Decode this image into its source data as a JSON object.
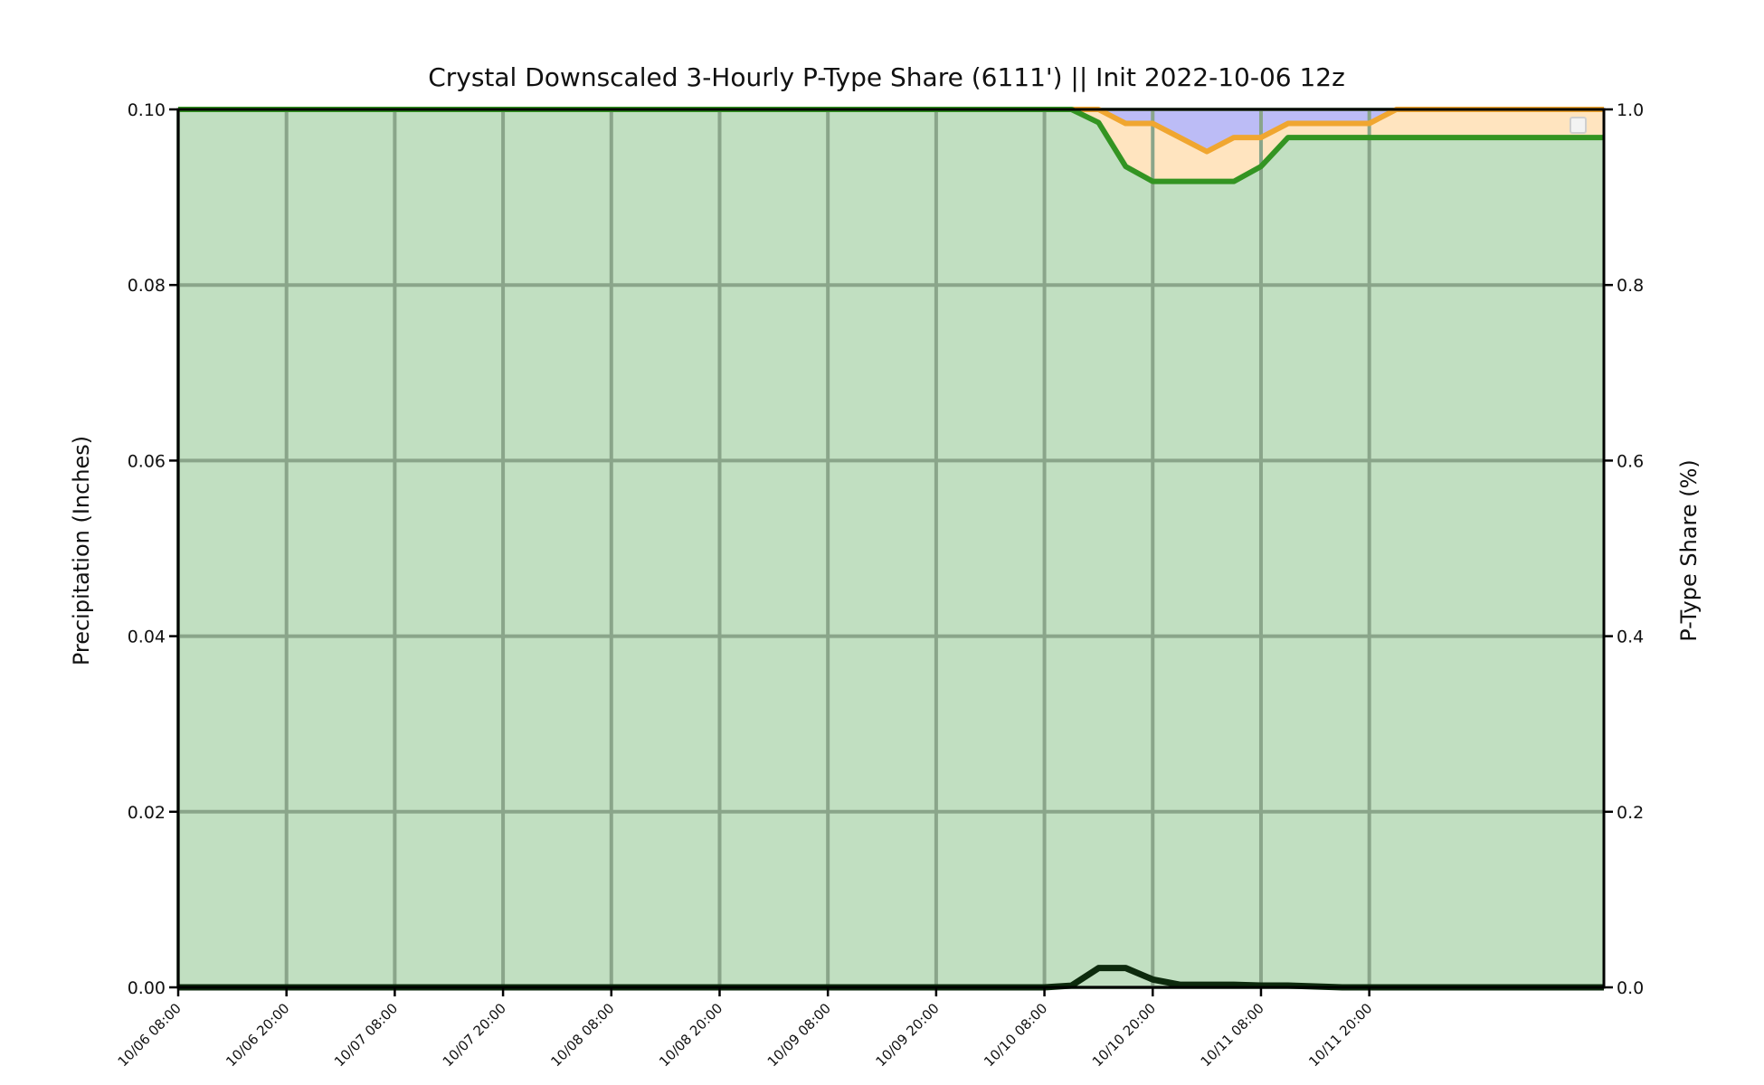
{
  "chart_data": {
    "type": "area",
    "title": "Crystal Downscaled 3-Hourly P-Type Share (6111') || Init 2022-10-06 12z",
    "ylabel_left": "Precipitation (Inches)",
    "ylabel_right": "P-Type Share (%)",
    "ylim_left": [
      0,
      0.1
    ],
    "ylim_right": [
      0,
      1.0
    ],
    "y_ticks_left": [
      "0.00",
      "0.02",
      "0.04",
      "0.06",
      "0.08",
      "0.10"
    ],
    "y_ticks_right": [
      "0.0",
      "0.2",
      "0.4",
      "0.6",
      "0.8",
      "1.0"
    ],
    "x_ticks": [
      "10/06 08:00",
      "10/06 20:00",
      "10/07 08:00",
      "10/07 20:00",
      "10/08 08:00",
      "10/08 20:00",
      "10/09 08:00",
      "10/09 20:00",
      "10/10 08:00",
      "10/10 20:00",
      "10/11 08:00",
      "10/11 20:00"
    ],
    "x_hours": [
      0,
      3,
      6,
      9,
      12,
      15,
      18,
      21,
      24,
      27,
      30,
      33,
      36,
      39,
      42,
      45,
      48,
      51,
      54,
      57,
      60,
      63,
      66,
      69,
      72,
      75,
      78,
      81,
      84,
      87,
      90,
      93,
      96,
      99,
      102,
      105,
      108,
      111,
      114,
      117,
      120,
      123,
      126,
      129,
      132,
      135,
      138,
      141
    ],
    "grid": true,
    "colors": {
      "rain_fill": "#c1dfc1",
      "rain_line": "#339422",
      "mix_fill": "#ffe4bf",
      "mix_line": "#f0a630",
      "snow_fill": "#bcbcf6",
      "precip_line": "#0d2a0d",
      "grid": "#8aa58a"
    },
    "series": [
      {
        "values": [
          1,
          1,
          1,
          1,
          1,
          1,
          1,
          1,
          1,
          1,
          1,
          1,
          1,
          1,
          1,
          1,
          1,
          1,
          1,
          1,
          1,
          1,
          1,
          1,
          1,
          1,
          1,
          1,
          1,
          1,
          1,
          1,
          1,
          1,
          0.985,
          0.935,
          0.918,
          0.918,
          0.918,
          0.918,
          0.935,
          0.968,
          0.968,
          0.968,
          0.968,
          0.968,
          0.968,
          0.968
        ]
      },
      {
        "values": [
          1,
          1,
          1,
          1,
          1,
          1,
          1,
          1,
          1,
          1,
          1,
          1,
          1,
          1,
          1,
          1,
          1,
          1,
          1,
          1,
          1,
          1,
          1,
          1,
          1,
          1,
          1,
          1,
          1,
          1,
          1,
          1,
          1,
          1,
          1,
          0.984,
          0.984,
          0.968,
          0.952,
          0.968,
          0.968,
          0.984,
          0.984,
          0.984,
          0.984,
          1,
          1,
          1
        ]
      },
      {
        "values": [
          0,
          0,
          0,
          0,
          0,
          0,
          0,
          0,
          0,
          0,
          0,
          0,
          0,
          0,
          0,
          0,
          0,
          0,
          0,
          0,
          0,
          0,
          0,
          0,
          0,
          0,
          0,
          0,
          0,
          0,
          0,
          0,
          0,
          0.0002,
          0.0022,
          0.0022,
          0.0009,
          0.0003,
          0.0003,
          0.0003,
          0.0002,
          0.0002,
          0.0001,
          0,
          0,
          0,
          0,
          0
        ]
      }
    ]
  }
}
